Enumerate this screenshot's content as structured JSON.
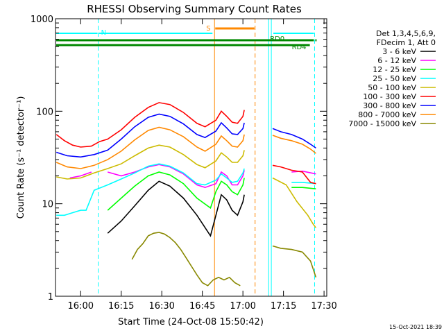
{
  "chart_data": {
    "type": "line",
    "title": "RHESSI Observing Summary Count Rates",
    "xlabel": "Start Time (24-Oct-08 15:50:42)",
    "ylabel": "Count Rate (s⁻¹ detector⁻¹)",
    "y_scale": "log",
    "ylim": [
      1,
      1000
    ],
    "xlim": [
      "15:50:42",
      "17:31:00"
    ],
    "x_ticks": [
      "16:00",
      "16:15",
      "16:30",
      "16:45",
      "17:00",
      "17:15",
      "17:30"
    ],
    "y_ticks": [
      "1",
      "10",
      "100",
      "1000"
    ],
    "legend_header": [
      "Det 1,3,4,5,6,9,",
      "FDecim 1, Att 0"
    ],
    "legend_position": "right",
    "series": [
      {
        "name": "3 - 6 keV",
        "color": "#000000",
        "points": [
          [
            "16:04",
            4.4
          ],
          [
            "16:10",
            4.8
          ],
          [
            "16:15",
            6.5
          ],
          [
            "16:20",
            9.5
          ],
          [
            "16:25",
            14
          ],
          [
            "16:29",
            17.5
          ],
          [
            "16:33",
            15.5
          ],
          [
            "16:38",
            11.5
          ],
          [
            "16:43",
            7.5
          ],
          [
            "16:48",
            4.5
          ],
          [
            "16:50",
            7.5
          ],
          [
            "16:52",
            12.5
          ],
          [
            "16:54",
            11
          ],
          [
            "16:56",
            8.5
          ],
          [
            "16:58",
            7.5
          ],
          [
            "17:00",
            10.5
          ],
          [
            "17:00.5",
            12.5
          ]
        ]
      },
      {
        "name": "6 - 12 keV",
        "color": "#ff00ff",
        "points": [
          [
            "15:56",
            19
          ],
          [
            "16:00",
            20
          ],
          [
            "16:04",
            22
          ],
          [
            "16:10",
            22
          ],
          [
            "16:15",
            20
          ],
          [
            "16:20",
            22
          ],
          [
            "16:25",
            25
          ],
          [
            "16:29",
            26.5
          ],
          [
            "16:33",
            25
          ],
          [
            "16:38",
            21
          ],
          [
            "16:43",
            16
          ],
          [
            "16:46",
            15
          ],
          [
            "16:50",
            16.5
          ],
          [
            "16:52",
            22
          ],
          [
            "16:54",
            20
          ],
          [
            "16:56",
            16
          ],
          [
            "16:58",
            16
          ],
          [
            "17:00",
            20
          ],
          [
            "17:00.5",
            23
          ],
          [
            "17:11",
            23.5
          ],
          [
            "17:18",
            22
          ],
          [
            "17:22",
            22.5
          ],
          [
            "17:27",
            21
          ]
        ]
      },
      {
        "name": "12 - 25 keV",
        "color": "#00ff00",
        "points": [
          [
            "16:04",
            7.5
          ],
          [
            "16:10",
            8.5
          ],
          [
            "16:15",
            11.5
          ],
          [
            "16:20",
            15.5
          ],
          [
            "16:25",
            20
          ],
          [
            "16:29",
            22
          ],
          [
            "16:33",
            20.5
          ],
          [
            "16:38",
            16.5
          ],
          [
            "16:43",
            11.5
          ],
          [
            "16:48",
            9
          ],
          [
            "16:50",
            13.5
          ],
          [
            "16:52",
            17.5
          ],
          [
            "16:54",
            16
          ],
          [
            "16:56",
            13.5
          ],
          [
            "16:58",
            12.5
          ],
          [
            "17:00",
            16
          ],
          [
            "17:00.5",
            19
          ],
          [
            "17:11",
            15.5
          ],
          [
            "17:18",
            15
          ],
          [
            "17:22",
            15
          ],
          [
            "17:27",
            14.5
          ]
        ]
      },
      {
        "name": "25 - 50 keV",
        "color": "#00ffff",
        "points": [
          [
            "15:51",
            7.5
          ],
          [
            "15:54",
            7.5
          ],
          [
            "15:57",
            8
          ],
          [
            "16:00",
            8.5
          ],
          [
            "16:02",
            8.5
          ],
          [
            "16:05",
            14
          ],
          [
            "16:10",
            16
          ],
          [
            "16:15",
            18.5
          ],
          [
            "16:20",
            21.5
          ],
          [
            "16:25",
            25.5
          ],
          [
            "16:29",
            27
          ],
          [
            "16:33",
            25.5
          ],
          [
            "16:38",
            21.5
          ],
          [
            "16:43",
            16.5
          ],
          [
            "16:46",
            16
          ],
          [
            "16:50",
            18
          ],
          [
            "16:52",
            21
          ],
          [
            "16:54",
            19
          ],
          [
            "16:56",
            17
          ],
          [
            "16:58",
            17.5
          ],
          [
            "17:00",
            21.5
          ],
          [
            "17:00.5",
            24
          ],
          [
            "17:11",
            18.5
          ],
          [
            "17:18",
            17
          ],
          [
            "17:22",
            17
          ],
          [
            "17:27",
            16.5
          ]
        ]
      },
      {
        "name": "50 - 100 keV",
        "color": "#ccbb00",
        "points": [
          [
            "15:51",
            19.5
          ],
          [
            "15:55",
            18.5
          ],
          [
            "16:00",
            19
          ],
          [
            "16:05",
            21.5
          ],
          [
            "16:10",
            24
          ],
          [
            "16:15",
            27
          ],
          [
            "16:20",
            33
          ],
          [
            "16:25",
            40
          ],
          [
            "16:29",
            43
          ],
          [
            "16:33",
            41
          ],
          [
            "16:38",
            34
          ],
          [
            "16:43",
            26.5
          ],
          [
            "16:46",
            24.5
          ],
          [
            "16:50",
            29
          ],
          [
            "16:52",
            35.5
          ],
          [
            "16:54",
            32
          ],
          [
            "16:56",
            28
          ],
          [
            "16:58",
            28
          ],
          [
            "17:00",
            33
          ],
          [
            "17:00.5",
            38
          ],
          [
            "17:11",
            19
          ],
          [
            "17:16",
            16
          ],
          [
            "17:20",
            10.5
          ],
          [
            "17:24",
            7.5
          ],
          [
            "17:26",
            6
          ],
          [
            "17:27",
            5.5
          ]
        ]
      },
      {
        "name": "100 - 300 keV",
        "color": "#ff0000",
        "points": [
          [
            "15:51",
            56
          ],
          [
            "15:54",
            48
          ],
          [
            "15:57",
            43
          ],
          [
            "16:00",
            41
          ],
          [
            "16:04",
            42
          ],
          [
            "16:07",
            47
          ],
          [
            "16:10",
            50
          ],
          [
            "16:15",
            63
          ],
          [
            "16:20",
            86
          ],
          [
            "16:25",
            110
          ],
          [
            "16:29",
            124
          ],
          [
            "16:33",
            118
          ],
          [
            "16:38",
            97
          ],
          [
            "16:43",
            74
          ],
          [
            "16:46",
            68
          ],
          [
            "16:50",
            80
          ],
          [
            "16:52",
            100
          ],
          [
            "16:54",
            88
          ],
          [
            "16:56",
            76
          ],
          [
            "16:58",
            74
          ],
          [
            "17:00",
            88
          ],
          [
            "17:00.5",
            103
          ],
          [
            "17:11",
            26
          ],
          [
            "17:14",
            25
          ],
          [
            "17:18",
            23
          ],
          [
            "17:22",
            22
          ],
          [
            "17:25",
            17
          ],
          [
            "17:27",
            16.5
          ]
        ]
      },
      {
        "name": "300 - 800 keV",
        "color": "#0000ff",
        "points": [
          [
            "15:51",
            36
          ],
          [
            "15:55",
            33
          ],
          [
            "16:00",
            32
          ],
          [
            "16:05",
            34
          ],
          [
            "16:10",
            38
          ],
          [
            "16:15",
            50
          ],
          [
            "16:20",
            68
          ],
          [
            "16:25",
            86
          ],
          [
            "16:29",
            93
          ],
          [
            "16:33",
            88
          ],
          [
            "16:38",
            73
          ],
          [
            "16:43",
            56
          ],
          [
            "16:46",
            52
          ],
          [
            "16:50",
            61
          ],
          [
            "16:52",
            75
          ],
          [
            "16:54",
            66
          ],
          [
            "16:56",
            57
          ],
          [
            "16:58",
            56
          ],
          [
            "17:00",
            65
          ],
          [
            "17:00.5",
            75
          ],
          [
            "17:11",
            65
          ],
          [
            "17:14",
            60
          ],
          [
            "17:18",
            56
          ],
          [
            "17:22",
            50
          ],
          [
            "17:25",
            44
          ],
          [
            "17:27",
            40
          ]
        ]
      },
      {
        "name": "800 - 7000 keV",
        "color": "#ff8800",
        "points": [
          [
            "15:51",
            28
          ],
          [
            "15:55",
            25
          ],
          [
            "16:00",
            24
          ],
          [
            "16:05",
            26
          ],
          [
            "16:10",
            30
          ],
          [
            "16:15",
            37
          ],
          [
            "16:20",
            49
          ],
          [
            "16:25",
            62
          ],
          [
            "16:29",
            67
          ],
          [
            "16:33",
            63
          ],
          [
            "16:38",
            53
          ],
          [
            "16:43",
            41
          ],
          [
            "16:46",
            37
          ],
          [
            "16:50",
            44
          ],
          [
            "16:52",
            54
          ],
          [
            "16:54",
            48
          ],
          [
            "16:56",
            42
          ],
          [
            "16:58",
            41
          ],
          [
            "17:00",
            48
          ],
          [
            "17:00.5",
            56
          ],
          [
            "17:11",
            55
          ],
          [
            "17:14",
            51
          ],
          [
            "17:18",
            48
          ],
          [
            "17:22",
            44
          ],
          [
            "17:25",
            39
          ],
          [
            "17:27",
            35
          ]
        ]
      },
      {
        "name": "7000 - 15000 keV",
        "color": "#888800",
        "points": [
          [
            "16:19",
            2.5
          ],
          [
            "16:21",
            3.2
          ],
          [
            "16:23",
            3.7
          ],
          [
            "16:25",
            4.5
          ],
          [
            "16:27",
            4.8
          ],
          [
            "16:29",
            4.9
          ],
          [
            "16:31",
            4.7
          ],
          [
            "16:33",
            4.3
          ],
          [
            "16:35",
            3.8
          ],
          [
            "16:37",
            3.2
          ],
          [
            "16:39",
            2.6
          ],
          [
            "16:41",
            2.1
          ],
          [
            "16:43",
            1.7
          ],
          [
            "16:45",
            1.4
          ],
          [
            "16:47",
            1.3
          ],
          [
            "16:49",
            1.5
          ],
          [
            "16:51",
            1.6
          ],
          [
            "16:53",
            1.5
          ],
          [
            "16:55",
            1.6
          ],
          [
            "16:57",
            1.4
          ],
          [
            "16:59",
            1.3
          ],
          [
            "17:11",
            3.5
          ],
          [
            "17:14",
            3.3
          ],
          [
            "17:18",
            3.2
          ],
          [
            "17:22",
            3.0
          ],
          [
            "17:25",
            2.4
          ],
          [
            "17:27",
            1.6
          ]
        ]
      }
    ],
    "flag_bars": [
      {
        "label": "N",
        "color": "#00ffff",
        "segments": [
          [
            "15:50:42",
            "16:06:30"
          ],
          [
            "16:06:30",
            "16:49:00"
          ],
          [
            "17:11:00",
            "17:26:30"
          ]
        ]
      },
      {
        "label": "S",
        "color": "#ff8800",
        "segments": [
          [
            "16:49:30",
            "17:04:30"
          ]
        ]
      },
      {
        "label": "RD0",
        "color": "#008800",
        "segments": [
          [
            "15:50:42",
            "17:26:30"
          ],
          [
            "17:26:30",
            "17:27:30"
          ]
        ]
      },
      {
        "label": "RD4",
        "color": "#008800",
        "segments": [
          [
            "15:50:42",
            "17:25:00"
          ]
        ]
      }
    ],
    "vertical_markers": [
      {
        "time": "16:06:30",
        "color": "#00ffff",
        "style": "dashed"
      },
      {
        "time": "16:49:30",
        "color": "#ff8800",
        "style": "solid"
      },
      {
        "time": "17:04:30",
        "color": "#ff8800",
        "style": "dashed"
      },
      {
        "time": "17:09:30",
        "color": "#00ffff",
        "style": "solid"
      },
      {
        "time": "17:10:30",
        "color": "#00ffff",
        "style": "solid"
      },
      {
        "time": "17:26:30",
        "color": "#00ffff",
        "style": "dashed"
      }
    ],
    "grid": false
  },
  "stamp": "15-Oct-2021 18:39"
}
